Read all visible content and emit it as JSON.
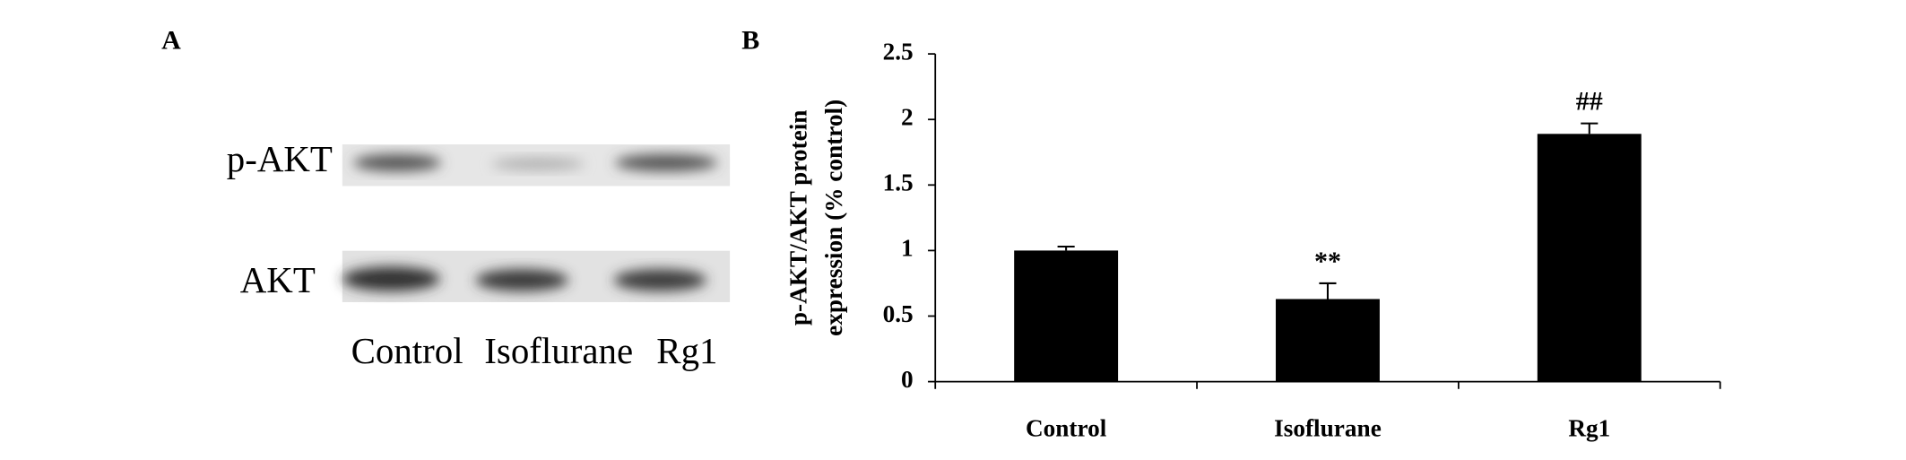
{
  "panel_a": {
    "label": "A",
    "rows": [
      "p-AKT",
      "AKT"
    ],
    "lanes": [
      "Control",
      "Isoflurane",
      "Rg1"
    ]
  },
  "chart_data": {
    "type": "bar",
    "panel_label": "B",
    "ylabel": [
      "p-AKT/AKT protein",
      "expression (% control)"
    ],
    "categories": [
      "Control",
      "Isoflurane",
      "Rg1"
    ],
    "values": [
      1.0,
      0.63,
      1.89
    ],
    "errors": [
      0.03,
      0.12,
      0.08
    ],
    "annotations": [
      null,
      "**",
      "##"
    ],
    "color": "#000000",
    "ylim": [
      0,
      2.5
    ],
    "yticks": [
      0,
      0.5,
      1,
      1.5,
      2,
      2.5
    ]
  }
}
